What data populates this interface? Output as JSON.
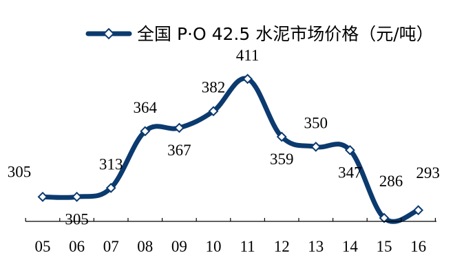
{
  "chart_data": {
    "type": "line",
    "categories": [
      "05",
      "06",
      "07",
      "08",
      "09",
      "10",
      "11",
      "12",
      "13",
      "14",
      "15",
      "16"
    ],
    "series": [
      {
        "name": "全国 P·O 42.5 水泥市场价格（元/吨）",
        "color": "#0b3a6f",
        "marker": "diamond-hollow",
        "values": [
          305,
          305,
          313,
          364,
          367,
          382,
          411,
          359,
          350,
          347,
          286,
          293
        ],
        "data_labels": [
          "305",
          "305",
          "313",
          "364",
          "367",
          "382",
          "411",
          "359",
          "350",
          "347",
          "286",
          "293"
        ]
      }
    ],
    "xlabel": "",
    "ylabel": "",
    "ylim": [
      270,
      430
    ],
    "legend_position": "top",
    "grid": false,
    "y_axis_visible": false
  }
}
